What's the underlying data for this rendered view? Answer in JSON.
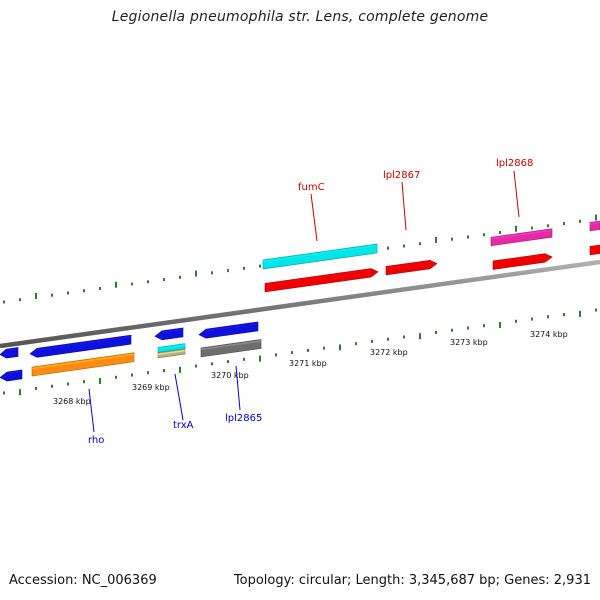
{
  "title": "Legionella pneumophila str. Lens, complete genome",
  "footer": {
    "accession": "Accession: NC_006369",
    "topology": "Topology: circular; Length: 3,345,687 bp; Genes: 2,931"
  },
  "colors": {
    "backbone": "#8a8a8a",
    "ticks": "#2e7d2e",
    "forward_label": "#cc0000",
    "reverse_label": "#0000cc"
  },
  "scale_labels": [
    "3268 kbp",
    "3269 kbp",
    "3270 kbp",
    "3271 kbp",
    "3272 kbp",
    "3273 kbp",
    "3274 kbp"
  ],
  "genes": [
    {
      "name": "fumC",
      "strand": "forward"
    },
    {
      "name": "lpl2867",
      "strand": "forward"
    },
    {
      "name": "lpl2868",
      "strand": "forward"
    },
    {
      "name": "rho",
      "strand": "reverse"
    },
    {
      "name": "trxA",
      "strand": "reverse"
    },
    {
      "name": "lpl2865",
      "strand": "reverse"
    }
  ]
}
